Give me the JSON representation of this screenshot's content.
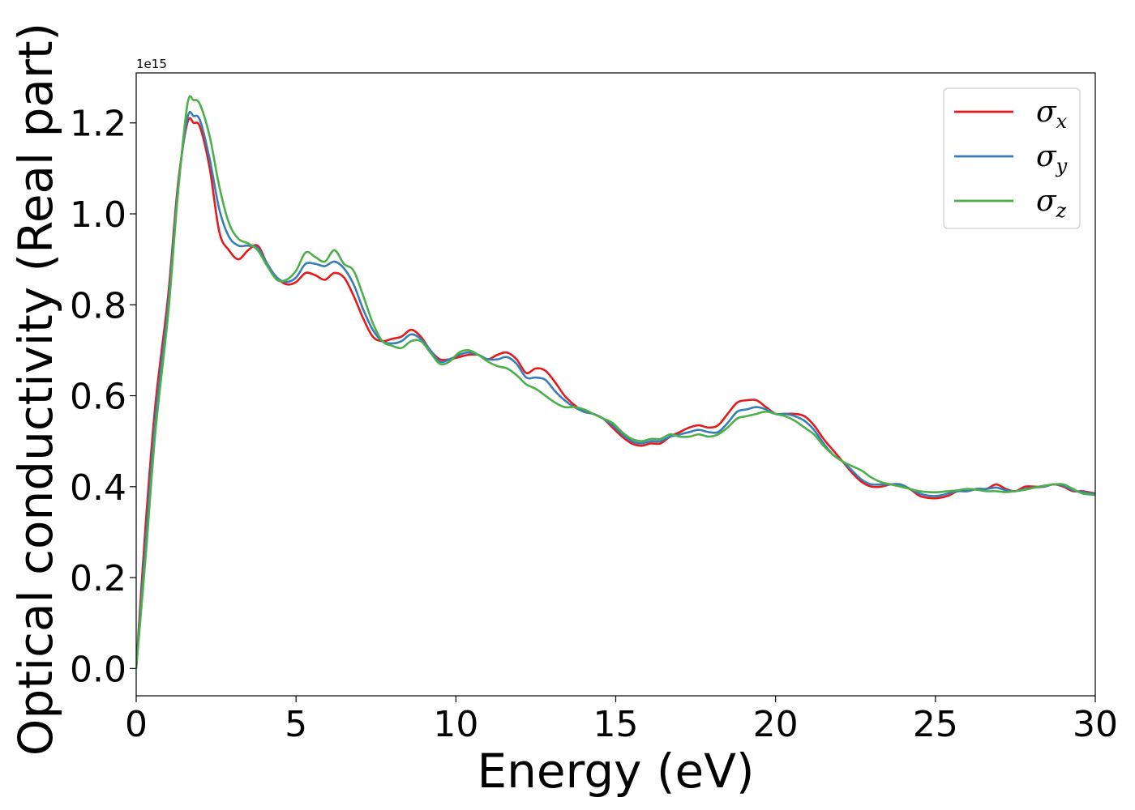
{
  "chart_data": {
    "type": "line",
    "title": "",
    "xlabel": "Energy (eV)",
    "ylabel": "Optical conductivity (Real part)",
    "y_offset_label": "1e15",
    "xlim": [
      0,
      30
    ],
    "ylim": [
      -0.06,
      1.31
    ],
    "xticks": [
      0,
      5,
      10,
      15,
      20,
      25,
      30
    ],
    "xtick_labels": [
      "0",
      "5",
      "10",
      "15",
      "20",
      "25",
      "30"
    ],
    "yticks": [
      0.0,
      0.2,
      0.4,
      0.6,
      0.8,
      1.0,
      1.2
    ],
    "ytick_labels": [
      "0.0",
      "0.2",
      "0.4",
      "0.6",
      "0.8",
      "1.0",
      "1.2"
    ],
    "grid": false,
    "legend_position": "top-right",
    "series": [
      {
        "name": "σ",
        "sub": "x",
        "color": "#e41a1c",
        "x": [
          0,
          0.3,
          0.6,
          1.0,
          1.3,
          1.6,
          1.8,
          2.0,
          2.3,
          2.6,
          2.9,
          3.2,
          3.5,
          3.8,
          4.1,
          4.4,
          4.7,
          5.0,
          5.3,
          5.6,
          5.9,
          6.2,
          6.5,
          6.8,
          7.1,
          7.4,
          7.7,
          8.0,
          8.3,
          8.6,
          8.9,
          9.2,
          9.5,
          9.8,
          10.1,
          10.4,
          10.7,
          11.0,
          11.3,
          11.6,
          11.9,
          12.2,
          12.5,
          12.8,
          13.1,
          13.4,
          13.7,
          14.0,
          14.3,
          14.6,
          14.9,
          15.2,
          15.5,
          15.8,
          16.1,
          16.4,
          16.7,
          17.0,
          17.3,
          17.6,
          17.9,
          18.2,
          18.5,
          18.8,
          19.1,
          19.4,
          19.7,
          20.0,
          20.3,
          20.6,
          20.9,
          21.2,
          21.5,
          21.8,
          22.1,
          22.4,
          22.7,
          23.0,
          23.3,
          23.6,
          23.9,
          24.2,
          24.5,
          24.8,
          25.1,
          25.4,
          25.7,
          26.0,
          26.3,
          26.6,
          26.9,
          27.2,
          27.5,
          27.8,
          28.1,
          28.4,
          28.7,
          29.0,
          29.3,
          29.6,
          30.0
        ],
        "y": [
          0.0,
          0.32,
          0.58,
          0.82,
          1.06,
          1.2,
          1.2,
          1.19,
          1.1,
          0.96,
          0.92,
          0.9,
          0.92,
          0.93,
          0.89,
          0.86,
          0.845,
          0.85,
          0.87,
          0.865,
          0.855,
          0.87,
          0.86,
          0.82,
          0.77,
          0.73,
          0.72,
          0.725,
          0.73,
          0.745,
          0.73,
          0.7,
          0.68,
          0.68,
          0.685,
          0.69,
          0.69,
          0.68,
          0.69,
          0.695,
          0.68,
          0.65,
          0.66,
          0.655,
          0.63,
          0.6,
          0.58,
          0.565,
          0.56,
          0.55,
          0.53,
          0.51,
          0.495,
          0.49,
          0.495,
          0.495,
          0.51,
          0.52,
          0.53,
          0.535,
          0.53,
          0.535,
          0.56,
          0.585,
          0.59,
          0.59,
          0.575,
          0.56,
          0.56,
          0.56,
          0.555,
          0.535,
          0.505,
          0.48,
          0.455,
          0.43,
          0.41,
          0.4,
          0.4,
          0.405,
          0.405,
          0.395,
          0.38,
          0.375,
          0.375,
          0.38,
          0.39,
          0.39,
          0.395,
          0.395,
          0.405,
          0.395,
          0.39,
          0.4,
          0.4,
          0.4,
          0.405,
          0.4,
          0.39,
          0.39,
          0.385
        ]
      },
      {
        "name": "σ",
        "sub": "y",
        "color": "#377eb8",
        "x": [
          0,
          0.3,
          0.6,
          1.0,
          1.3,
          1.6,
          1.8,
          2.0,
          2.3,
          2.6,
          2.9,
          3.2,
          3.5,
          3.8,
          4.1,
          4.4,
          4.7,
          5.0,
          5.3,
          5.6,
          5.9,
          6.2,
          6.5,
          6.8,
          7.1,
          7.4,
          7.7,
          8.0,
          8.3,
          8.6,
          8.9,
          9.2,
          9.5,
          9.8,
          10.1,
          10.4,
          10.7,
          11.0,
          11.3,
          11.6,
          11.9,
          12.2,
          12.5,
          12.8,
          13.1,
          13.4,
          13.7,
          14.0,
          14.3,
          14.6,
          14.9,
          15.2,
          15.5,
          15.8,
          16.1,
          16.4,
          16.7,
          17.0,
          17.3,
          17.6,
          17.9,
          18.2,
          18.5,
          18.8,
          19.1,
          19.4,
          19.7,
          20.0,
          20.3,
          20.6,
          20.9,
          21.2,
          21.5,
          21.8,
          22.1,
          22.4,
          22.7,
          23.0,
          23.3,
          23.6,
          23.9,
          24.2,
          24.5,
          24.8,
          25.1,
          25.4,
          25.7,
          26.0,
          26.3,
          26.6,
          26.9,
          27.2,
          27.5,
          27.8,
          28.1,
          28.4,
          28.7,
          29.0,
          29.3,
          29.6,
          30.0
        ],
        "y": [
          0.0,
          0.28,
          0.55,
          0.8,
          1.05,
          1.21,
          1.215,
          1.205,
          1.12,
          1.01,
          0.95,
          0.93,
          0.93,
          0.925,
          0.89,
          0.86,
          0.85,
          0.86,
          0.89,
          0.89,
          0.885,
          0.895,
          0.88,
          0.845,
          0.79,
          0.745,
          0.72,
          0.715,
          0.72,
          0.735,
          0.725,
          0.7,
          0.675,
          0.68,
          0.69,
          0.695,
          0.69,
          0.68,
          0.68,
          0.685,
          0.67,
          0.64,
          0.64,
          0.635,
          0.61,
          0.59,
          0.575,
          0.565,
          0.56,
          0.55,
          0.535,
          0.515,
          0.5,
          0.495,
          0.5,
          0.5,
          0.51,
          0.515,
          0.52,
          0.525,
          0.52,
          0.52,
          0.54,
          0.565,
          0.57,
          0.575,
          0.57,
          0.56,
          0.56,
          0.555,
          0.545,
          0.525,
          0.495,
          0.47,
          0.455,
          0.435,
          0.415,
          0.405,
          0.405,
          0.405,
          0.405,
          0.395,
          0.385,
          0.38,
          0.38,
          0.385,
          0.39,
          0.39,
          0.395,
          0.395,
          0.398,
          0.392,
          0.39,
          0.395,
          0.398,
          0.4,
          0.405,
          0.402,
          0.392,
          0.388,
          0.384
        ]
      },
      {
        "name": "σ",
        "sub": "z",
        "color": "#4daf4a",
        "x": [
          0,
          0.3,
          0.6,
          1.0,
          1.3,
          1.6,
          1.8,
          2.0,
          2.3,
          2.6,
          2.9,
          3.2,
          3.5,
          3.8,
          4.1,
          4.4,
          4.7,
          5.0,
          5.3,
          5.6,
          5.9,
          6.2,
          6.5,
          6.8,
          7.1,
          7.4,
          7.7,
          8.0,
          8.3,
          8.6,
          8.9,
          9.2,
          9.5,
          9.8,
          10.1,
          10.4,
          10.7,
          11.0,
          11.3,
          11.6,
          11.9,
          12.2,
          12.5,
          12.8,
          13.1,
          13.4,
          13.7,
          14.0,
          14.3,
          14.6,
          14.9,
          15.2,
          15.5,
          15.8,
          16.1,
          16.4,
          16.7,
          17.0,
          17.3,
          17.6,
          17.9,
          18.2,
          18.5,
          18.8,
          19.1,
          19.4,
          19.7,
          20.0,
          20.3,
          20.6,
          20.9,
          21.2,
          21.5,
          21.8,
          22.1,
          22.4,
          22.7,
          23.0,
          23.3,
          23.6,
          23.9,
          24.2,
          24.5,
          24.8,
          25.1,
          25.4,
          25.7,
          26.0,
          26.3,
          26.6,
          26.9,
          27.2,
          27.5,
          27.8,
          28.1,
          28.4,
          28.7,
          29.0,
          29.3,
          29.6,
          30.0
        ],
        "y": [
          0.0,
          0.25,
          0.52,
          0.78,
          1.04,
          1.24,
          1.25,
          1.24,
          1.17,
          1.06,
          0.98,
          0.945,
          0.935,
          0.92,
          0.885,
          0.855,
          0.855,
          0.875,
          0.915,
          0.905,
          0.895,
          0.92,
          0.89,
          0.875,
          0.82,
          0.76,
          0.72,
          0.71,
          0.705,
          0.72,
          0.72,
          0.695,
          0.67,
          0.675,
          0.695,
          0.7,
          0.69,
          0.675,
          0.665,
          0.66,
          0.645,
          0.625,
          0.615,
          0.6,
          0.585,
          0.575,
          0.575,
          0.57,
          0.56,
          0.55,
          0.54,
          0.52,
          0.505,
          0.5,
          0.505,
          0.505,
          0.515,
          0.51,
          0.51,
          0.515,
          0.51,
          0.515,
          0.53,
          0.55,
          0.555,
          0.56,
          0.565,
          0.56,
          0.555,
          0.545,
          0.53,
          0.515,
          0.49,
          0.47,
          0.455,
          0.445,
          0.435,
          0.42,
          0.41,
          0.405,
          0.4,
          0.395,
          0.39,
          0.388,
          0.388,
          0.39,
          0.392,
          0.395,
          0.393,
          0.39,
          0.39,
          0.388,
          0.39,
          0.393,
          0.398,
          0.402,
          0.405,
          0.405,
          0.395,
          0.385,
          0.382
        ]
      }
    ]
  }
}
